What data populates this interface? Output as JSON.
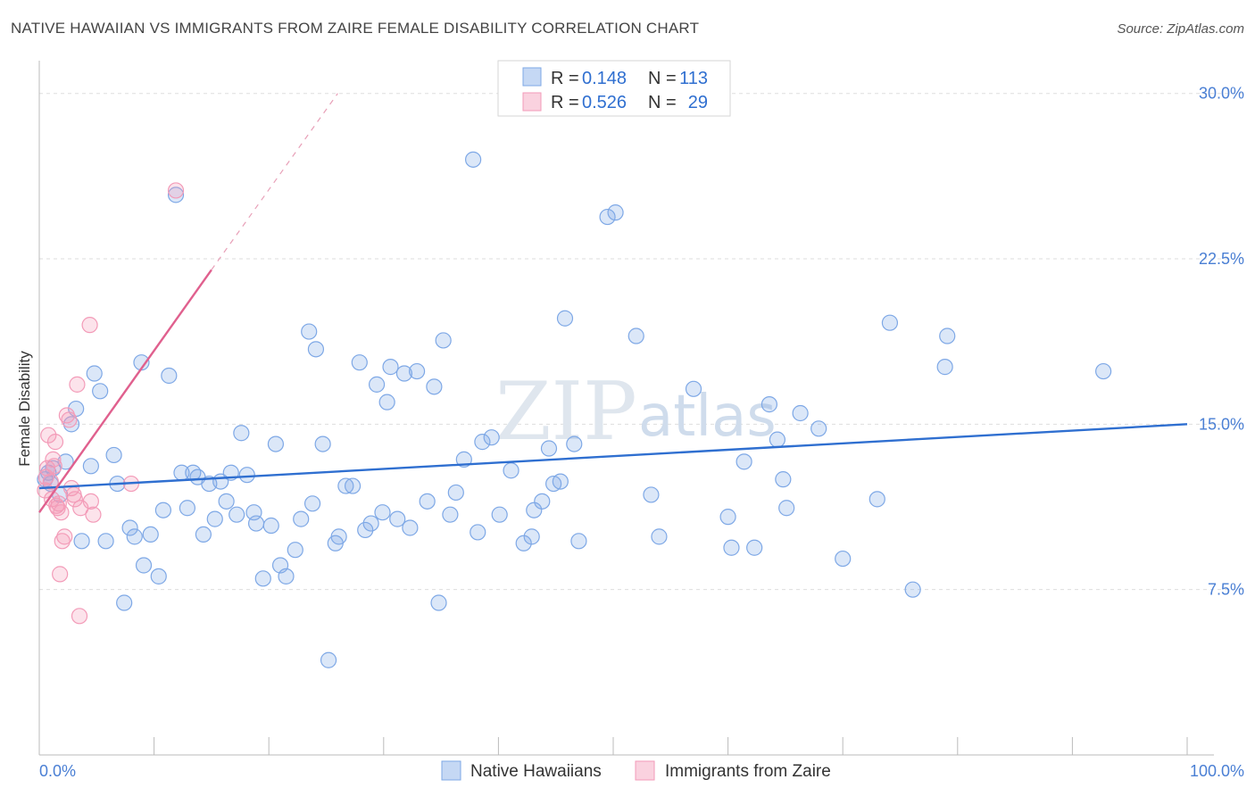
{
  "title": "NATIVE HAWAIIAN VS IMMIGRANTS FROM ZAIRE FEMALE DISABILITY CORRELATION CHART",
  "source": "Source: ZipAtlas.com",
  "watermark": {
    "zip": "ZIP",
    "atlas": "atlas"
  },
  "colors": {
    "blue": "#7ea8e6",
    "blue_line": "#2f6fd0",
    "pink": "#f39bb8",
    "pink_line": "#e0608e"
  },
  "legend": {
    "r_label": "R =",
    "n_label": "N =",
    "rows": [
      {
        "r": "0.148",
        "n": "113"
      },
      {
        "r": "0.526",
        "n": "29"
      }
    ]
  },
  "chart_data": {
    "type": "scatter",
    "title": "NATIVE HAWAIIAN VS IMMIGRANTS FROM ZAIRE FEMALE DISABILITY CORRELATION CHART",
    "xlabel": "",
    "ylabel": "Female Disability",
    "xlim": [
      0,
      100
    ],
    "ylim": [
      0,
      31
    ],
    "x_tick_labels": [
      "0.0%",
      "100.0%"
    ],
    "y_ticks": [
      7.5,
      15.0,
      22.5,
      30.0
    ],
    "y_tick_labels": [
      "7.5%",
      "15.0%",
      "22.5%",
      "30.0%"
    ],
    "series": [
      {
        "name": "Native Hawaiians",
        "trend": {
          "x": [
            0,
            100
          ],
          "y": [
            12.1,
            15.0
          ]
        },
        "points": [
          [
            0.5,
            12.5
          ],
          [
            0.8,
            12.8
          ],
          [
            1.0,
            12.3
          ],
          [
            1.2,
            13.0
          ],
          [
            1.8,
            11.8
          ],
          [
            2.3,
            13.3
          ],
          [
            2.8,
            15.0
          ],
          [
            3.2,
            15.7
          ],
          [
            3.7,
            9.7
          ],
          [
            4.5,
            13.1
          ],
          [
            4.8,
            17.3
          ],
          [
            5.3,
            16.5
          ],
          [
            5.8,
            9.7
          ],
          [
            6.5,
            13.6
          ],
          [
            6.8,
            12.3
          ],
          [
            7.4,
            6.9
          ],
          [
            7.9,
            10.3
          ],
          [
            8.3,
            9.9
          ],
          [
            8.9,
            17.8
          ],
          [
            9.1,
            8.6
          ],
          [
            9.7,
            10.0
          ],
          [
            10.4,
            8.1
          ],
          [
            10.8,
            11.1
          ],
          [
            11.3,
            17.2
          ],
          [
            11.9,
            25.4
          ],
          [
            12.4,
            12.8
          ],
          [
            12.9,
            11.2
          ],
          [
            13.4,
            12.8
          ],
          [
            13.8,
            12.6
          ],
          [
            14.3,
            10.0
          ],
          [
            14.8,
            12.3
          ],
          [
            15.3,
            10.7
          ],
          [
            15.8,
            12.4
          ],
          [
            16.3,
            11.5
          ],
          [
            16.7,
            12.8
          ],
          [
            17.2,
            10.9
          ],
          [
            17.6,
            14.6
          ],
          [
            18.1,
            12.7
          ],
          [
            18.7,
            11.0
          ],
          [
            18.9,
            10.5
          ],
          [
            19.5,
            8.0
          ],
          [
            20.2,
            10.4
          ],
          [
            20.6,
            14.1
          ],
          [
            21.0,
            8.6
          ],
          [
            21.5,
            8.1
          ],
          [
            22.3,
            9.3
          ],
          [
            22.8,
            10.7
          ],
          [
            23.5,
            19.2
          ],
          [
            23.8,
            11.4
          ],
          [
            24.1,
            18.4
          ],
          [
            24.7,
            14.1
          ],
          [
            25.2,
            4.3
          ],
          [
            25.8,
            9.6
          ],
          [
            26.1,
            9.9
          ],
          [
            26.7,
            12.2
          ],
          [
            27.3,
            12.2
          ],
          [
            27.9,
            17.8
          ],
          [
            28.4,
            10.2
          ],
          [
            28.9,
            10.5
          ],
          [
            29.4,
            16.8
          ],
          [
            29.9,
            11.0
          ],
          [
            30.3,
            16.0
          ],
          [
            30.6,
            17.6
          ],
          [
            31.2,
            10.7
          ],
          [
            31.8,
            17.3
          ],
          [
            32.3,
            10.3
          ],
          [
            32.9,
            17.4
          ],
          [
            33.8,
            11.5
          ],
          [
            34.4,
            16.7
          ],
          [
            34.8,
            6.9
          ],
          [
            35.2,
            18.8
          ],
          [
            35.8,
            10.9
          ],
          [
            36.3,
            11.9
          ],
          [
            37.0,
            13.4
          ],
          [
            37.8,
            27.0
          ],
          [
            38.2,
            10.1
          ],
          [
            38.6,
            14.2
          ],
          [
            39.4,
            14.4
          ],
          [
            40.1,
            10.9
          ],
          [
            41.1,
            12.9
          ],
          [
            42.2,
            9.6
          ],
          [
            42.9,
            9.9
          ],
          [
            43.1,
            11.1
          ],
          [
            43.8,
            11.5
          ],
          [
            44.4,
            13.9
          ],
          [
            44.8,
            12.3
          ],
          [
            45.4,
            12.4
          ],
          [
            45.8,
            19.8
          ],
          [
            46.6,
            14.1
          ],
          [
            47.0,
            9.7
          ],
          [
            49.5,
            24.4
          ],
          [
            50.2,
            24.6
          ],
          [
            52.0,
            19.0
          ],
          [
            53.3,
            11.8
          ],
          [
            54.0,
            9.9
          ],
          [
            57.0,
            16.6
          ],
          [
            60.0,
            10.8
          ],
          [
            60.3,
            9.4
          ],
          [
            61.4,
            13.3
          ],
          [
            62.3,
            9.4
          ],
          [
            63.6,
            15.9
          ],
          [
            64.3,
            14.3
          ],
          [
            64.8,
            12.5
          ],
          [
            65.1,
            11.2
          ],
          [
            66.3,
            15.5
          ],
          [
            67.9,
            14.8
          ],
          [
            70.0,
            8.9
          ],
          [
            73.0,
            11.6
          ],
          [
            74.1,
            19.6
          ],
          [
            76.1,
            7.5
          ],
          [
            78.9,
            17.6
          ],
          [
            79.1,
            19.0
          ],
          [
            92.7,
            17.4
          ]
        ]
      },
      {
        "name": "Immigrants from Zaire",
        "trend": {
          "x": [
            0,
            15
          ],
          "y": [
            11.0,
            22.0
          ],
          "extension": {
            "x": [
              15,
              26
            ],
            "y": [
              22.0,
              30.0
            ]
          }
        },
        "points": [
          [
            0.5,
            12.0
          ],
          [
            0.6,
            12.6
          ],
          [
            0.7,
            13.0
          ],
          [
            0.8,
            14.5
          ],
          [
            1.0,
            12.4
          ],
          [
            1.1,
            11.6
          ],
          [
            1.2,
            13.4
          ],
          [
            1.3,
            13.1
          ],
          [
            1.4,
            14.2
          ],
          [
            1.5,
            11.3
          ],
          [
            1.6,
            11.2
          ],
          [
            1.7,
            11.4
          ],
          [
            1.8,
            8.2
          ],
          [
            1.9,
            11.0
          ],
          [
            2.0,
            9.7
          ],
          [
            2.2,
            9.9
          ],
          [
            2.4,
            15.4
          ],
          [
            2.6,
            15.2
          ],
          [
            2.8,
            12.1
          ],
          [
            3.0,
            11.8
          ],
          [
            3.1,
            11.6
          ],
          [
            3.3,
            16.8
          ],
          [
            3.5,
            6.3
          ],
          [
            3.6,
            11.2
          ],
          [
            4.4,
            19.5
          ],
          [
            4.5,
            11.5
          ],
          [
            4.7,
            10.9
          ],
          [
            8.0,
            12.3
          ],
          [
            11.9,
            25.6
          ]
        ]
      }
    ]
  },
  "bottom_legend": [
    {
      "label": "Native Hawaiians"
    },
    {
      "label": "Immigrants from Zaire"
    }
  ]
}
